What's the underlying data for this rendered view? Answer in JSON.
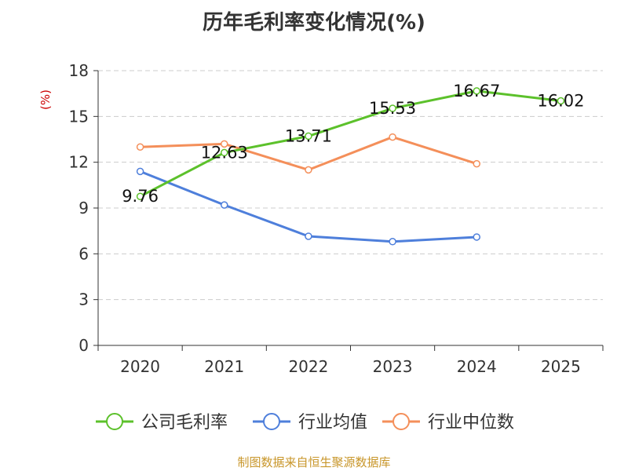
{
  "chart_data": {
    "type": "line",
    "title": "历年毛利率变化情况(%)",
    "ylabel": "(%)",
    "xlabel": "",
    "categories": [
      "2020",
      "2021",
      "2022",
      "2023",
      "2024",
      "2025"
    ],
    "ylim": [
      0,
      18
    ],
    "yticks": [
      "0",
      "3",
      "6",
      "9",
      "12",
      "15",
      "18"
    ],
    "grid": true,
    "legend_position": "bottom",
    "series": [
      {
        "name": "公司毛利率",
        "color": "#5cc12b",
        "values": [
          9.76,
          12.63,
          13.71,
          15.53,
          16.67,
          16.02
        ],
        "labels": [
          "9.76",
          "12.63",
          "13.71",
          "15.53",
          "16.67",
          "16.02"
        ]
      },
      {
        "name": "行业均值",
        "color": "#4e7fdb",
        "values": [
          11.4,
          9.2,
          7.15,
          6.8,
          7.1,
          null
        ]
      },
      {
        "name": "行业中位数",
        "color": "#f48f5a",
        "values": [
          13.0,
          13.2,
          11.5,
          13.65,
          11.9,
          null
        ]
      }
    ]
  },
  "footer": {
    "source": "制图数据来自恒生聚源数据库"
  },
  "colors": {
    "ylabel": "#cc0000",
    "axis": "#333333",
    "grid": "#cccccc"
  }
}
